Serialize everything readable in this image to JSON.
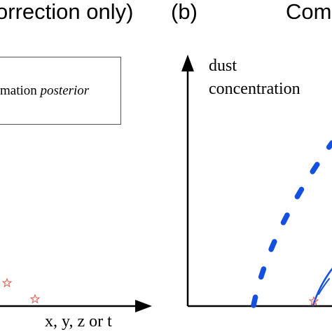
{
  "panels": {
    "left": {
      "title_fragment": "orrection only)",
      "legend": {
        "text_regular": "mation ",
        "text_italic": "posterior"
      },
      "x_axis_label": "x, y, z or t",
      "marker_symbol": "star",
      "marker_color": "#e05a4a"
    },
    "right": {
      "label": "(b)",
      "title_fragment": "Com",
      "y_axis_label_line1": "dust",
      "y_axis_label_line2": "concentration",
      "curve_color": "#1350e0",
      "marker_symbol": "star",
      "marker_color": "#e05a4a"
    }
  },
  "colors": {
    "axis": "#000000",
    "curve_blue": "#1350e0",
    "star_red": "#e05a4a",
    "legend_border": "#555555"
  }
}
